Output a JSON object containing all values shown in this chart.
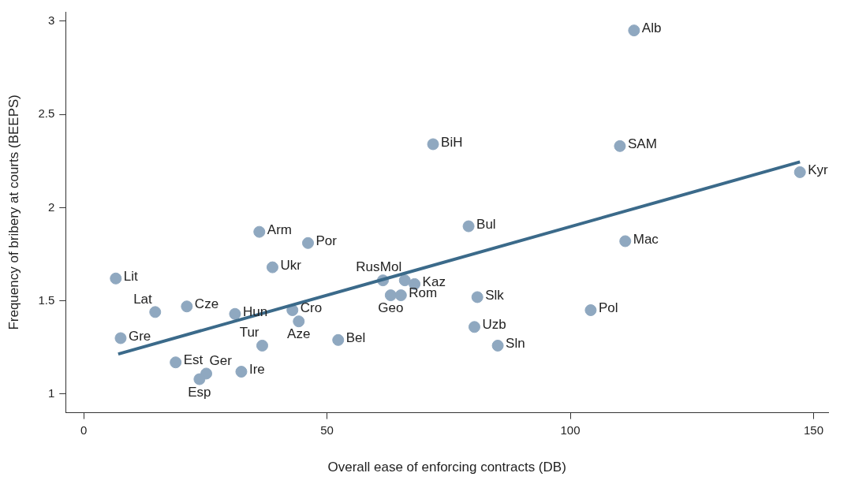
{
  "chart_data": {
    "type": "scatter",
    "xlabel": "Overall ease of enforcing contracts (DB)",
    "ylabel": "Frequency of bribery at courts (BEEPS)",
    "xlim": [
      -3.7,
      153
    ],
    "ylim": [
      0.9,
      3.05
    ],
    "xticks": [
      0,
      50,
      100,
      150
    ],
    "yticks": [
      1,
      1.5,
      2,
      2.5,
      3
    ],
    "grid": false,
    "legend": false,
    "marker": "circle",
    "series": [
      {
        "color": "#8fa8c0",
        "x": [
          113.1,
          71.8,
          110.2,
          147.2,
          36.1,
          46.1,
          79.1,
          111.3,
          38.8,
          6.6,
          61.5,
          66.0,
          68.0,
          63.1,
          65.2,
          80.9,
          104.2,
          21.2,
          14.7,
          31.1,
          42.9,
          44.2,
          80.3,
          7.6,
          52.3,
          36.7,
          85.1,
          18.9,
          32.4,
          25.2,
          23.8
        ],
        "values": [
          2.95,
          2.34,
          2.33,
          2.19,
          1.87,
          1.81,
          1.9,
          1.82,
          1.68,
          1.62,
          1.61,
          1.61,
          1.59,
          1.53,
          1.53,
          1.52,
          1.45,
          1.47,
          1.44,
          1.43,
          1.45,
          1.39,
          1.36,
          1.3,
          1.29,
          1.26,
          1.26,
          1.17,
          1.12,
          1.11,
          1.08
        ]
      },
      {
        "type": "line",
        "color": "#3b6a8a",
        "x": [
          7.1,
          147.2
        ],
        "values": [
          1.215,
          2.245
        ],
        "line_style": "solid",
        "marker": "none"
      }
    ],
    "annotations": [
      {
        "text": "Alb",
        "x": 113.1,
        "y": 2.95
      },
      {
        "text": "BiH",
        "x": 71.8,
        "y": 2.34
      },
      {
        "text": "SAM",
        "x": 110.2,
        "y": 2.33
      },
      {
        "text": "Kyr",
        "x": 147.2,
        "y": 2.19
      },
      {
        "text": "Arm",
        "x": 36.1,
        "y": 1.87
      },
      {
        "text": "Por",
        "x": 46.1,
        "y": 1.81
      },
      {
        "text": "Bul",
        "x": 79.1,
        "y": 1.9
      },
      {
        "text": "Mac",
        "x": 111.3,
        "y": 1.82
      },
      {
        "text": "Ukr",
        "x": 38.8,
        "y": 1.68
      },
      {
        "text": "Lit",
        "x": 6.6,
        "y": 1.62
      },
      {
        "text": "Rus",
        "x": 61.5,
        "y": 1.61
      },
      {
        "text": "Mol",
        "x": 66.0,
        "y": 1.61
      },
      {
        "text": "Kaz",
        "x": 68.0,
        "y": 1.59
      },
      {
        "text": "Geo",
        "x": 63.1,
        "y": 1.53
      },
      {
        "text": "Rom",
        "x": 65.2,
        "y": 1.53
      },
      {
        "text": "Slk",
        "x": 80.9,
        "y": 1.52
      },
      {
        "text": "Pol",
        "x": 104.2,
        "y": 1.45
      },
      {
        "text": "Cze",
        "x": 21.2,
        "y": 1.47
      },
      {
        "text": "Lat",
        "x": 14.7,
        "y": 1.44
      },
      {
        "text": "Hun",
        "x": 31.1,
        "y": 1.43
      },
      {
        "text": "Cro",
        "x": 42.9,
        "y": 1.45
      },
      {
        "text": "Aze",
        "x": 44.2,
        "y": 1.39
      },
      {
        "text": "Uzb",
        "x": 80.3,
        "y": 1.36
      },
      {
        "text": "Gre",
        "x": 7.6,
        "y": 1.3
      },
      {
        "text": "Bel",
        "x": 52.3,
        "y": 1.29
      },
      {
        "text": "Tur",
        "x": 36.7,
        "y": 1.26
      },
      {
        "text": "Sln",
        "x": 85.1,
        "y": 1.26
      },
      {
        "text": "Est",
        "x": 18.9,
        "y": 1.17
      },
      {
        "text": "Ire",
        "x": 32.4,
        "y": 1.12
      },
      {
        "text": "Ger",
        "x": 25.2,
        "y": 1.11
      },
      {
        "text": "Esp",
        "x": 23.8,
        "y": 1.08
      }
    ]
  }
}
